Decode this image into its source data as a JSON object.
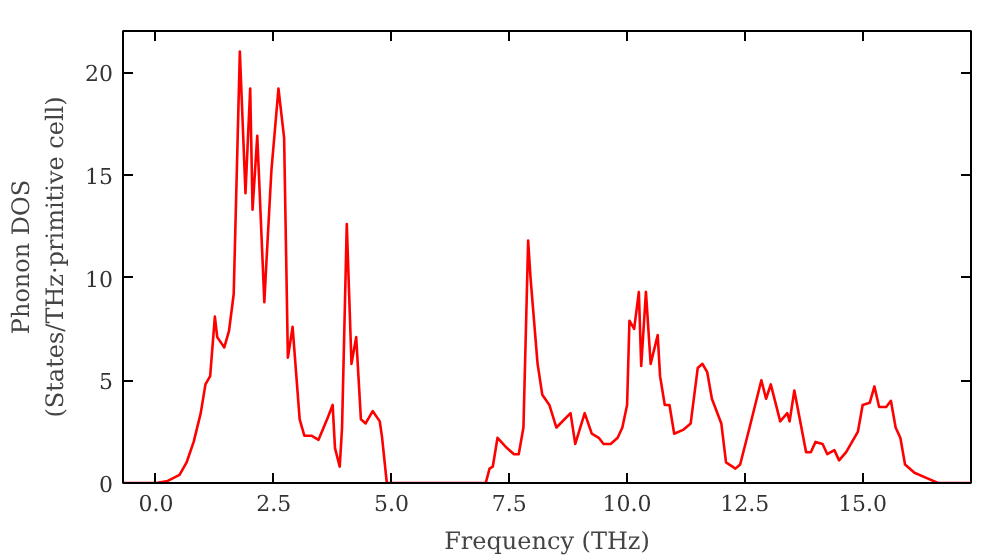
{
  "chart_data": {
    "type": "line",
    "xlabel": "Frequency (THz)",
    "ylabel": "Phonon DOS\n(States/THz·primitive cell)",
    "xlim": [
      -0.7,
      17.3
    ],
    "ylim": [
      0,
      22
    ],
    "xticks": [
      {
        "value": 0,
        "label": "0.0"
      },
      {
        "value": 2.5,
        "label": "2.5"
      },
      {
        "value": 5,
        "label": "5.0"
      },
      {
        "value": 7.5,
        "label": "7.5"
      },
      {
        "value": 10,
        "label": "10.0"
      },
      {
        "value": 12.5,
        "label": "12.5"
      },
      {
        "value": 15,
        "label": "15.0"
      }
    ],
    "yticks": [
      0,
      5,
      10,
      15,
      20
    ],
    "grid": false,
    "series": [
      {
        "color": "#ff0000",
        "x": [
          -0.7,
          0,
          0.25,
          0.5,
          0.65,
          0.8,
          0.95,
          1.05,
          1.15,
          1.25,
          1.3,
          1.45,
          1.55,
          1.65,
          1.78,
          1.9,
          2.0,
          2.05,
          2.15,
          2.3,
          2.35,
          2.45,
          2.6,
          2.72,
          2.8,
          2.9,
          3.05,
          3.15,
          3.3,
          3.45,
          3.65,
          3.75,
          3.8,
          3.9,
          3.95,
          4.05,
          4.15,
          4.25,
          4.35,
          4.45,
          4.6,
          4.75,
          4.8,
          4.9,
          7.0,
          7.08,
          7.15,
          7.25,
          7.45,
          7.6,
          7.7,
          7.8,
          7.9,
          7.95,
          8.1,
          8.2,
          8.35,
          8.5,
          8.8,
          8.9,
          9.1,
          9.25,
          9.4,
          9.5,
          9.65,
          9.8,
          9.9,
          10.0,
          10.05,
          10.15,
          10.25,
          10.3,
          10.4,
          10.5,
          10.65,
          10.7,
          10.8,
          10.9,
          11.0,
          11.2,
          11.35,
          11.5,
          11.6,
          11.7,
          11.8,
          12.0,
          12.1,
          12.3,
          12.4,
          12.6,
          12.85,
          12.95,
          13.05,
          13.25,
          13.4,
          13.45,
          13.55,
          13.8,
          13.9,
          14.0,
          14.15,
          14.25,
          14.4,
          14.5,
          14.65,
          14.9,
          15.0,
          15.15,
          15.25,
          15.35,
          15.5,
          15.6,
          15.7,
          15.8,
          15.9,
          16.1,
          16.4,
          16.6,
          17.3
        ],
        "values": [
          0,
          0,
          0.1,
          0.4,
          1.0,
          2.0,
          3.4,
          4.8,
          5.2,
          8.1,
          7.1,
          6.6,
          7.4,
          9.2,
          21.0,
          14.1,
          19.2,
          13.3,
          16.9,
          8.8,
          11.0,
          15.2,
          19.2,
          16.8,
          6.1,
          7.6,
          3.1,
          2.3,
          2.3,
          2.1,
          3.2,
          3.8,
          1.7,
          0.8,
          2.7,
          12.6,
          5.8,
          7.1,
          3.1,
          2.9,
          3.5,
          3.0,
          2.2,
          0,
          0,
          0.7,
          0.8,
          2.2,
          1.7,
          1.4,
          1.4,
          2.7,
          11.8,
          10.0,
          5.8,
          4.3,
          3.8,
          2.7,
          3.4,
          1.9,
          3.4,
          2.4,
          2.2,
          1.9,
          1.9,
          2.2,
          2.7,
          3.8,
          7.9,
          7.5,
          9.3,
          5.7,
          9.3,
          5.8,
          7.2,
          5.2,
          3.8,
          3.8,
          2.4,
          2.6,
          2.9,
          5.6,
          5.8,
          5.4,
          4.1,
          2.9,
          1.0,
          0.7,
          0.9,
          2.7,
          5.0,
          4.1,
          4.8,
          3.0,
          3.4,
          3.0,
          4.5,
          1.5,
          1.5,
          2.0,
          1.9,
          1.4,
          1.6,
          1.1,
          1.5,
          2.5,
          3.8,
          3.9,
          4.7,
          3.7,
          3.7,
          4.0,
          2.7,
          2.2,
          0.9,
          0.5,
          0.2,
          0,
          0
        ]
      }
    ]
  }
}
